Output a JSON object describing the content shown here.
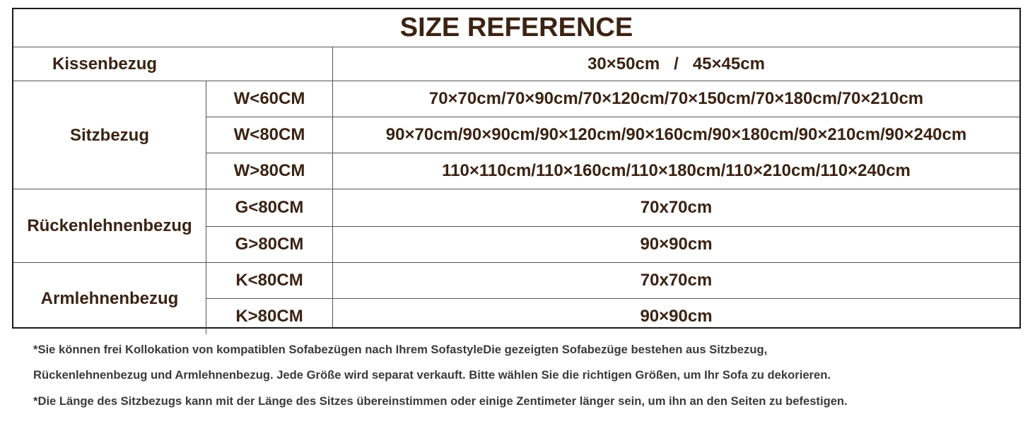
{
  "table": {
    "title": "SIZE REFERENCE",
    "groups": [
      {
        "name": "Kissenbezug",
        "items": [
          {
            "sizes": "30×50cm   /   45×45cm"
          }
        ]
      },
      {
        "name": "Sitzbezug",
        "items": [
          {
            "condition": "W<60CM",
            "sizes": "70×70cm/70×90cm/70×120cm/70×150cm/70×180cm/70×210cm"
          },
          {
            "condition": "W<80CM",
            "sizes": "90×70cm/90×90cm/90×120cm/90×160cm/90×180cm/90×210cm/90×240cm"
          },
          {
            "condition": "W>80CM",
            "sizes": "110×110cm/110×160cm/110×180cm/110×210cm/110×240cm"
          }
        ]
      },
      {
        "name": "Rückenlehnenbezug",
        "items": [
          {
            "condition": "G<80CM",
            "sizes": "70x70cm"
          },
          {
            "condition": "G>80CM",
            "sizes": "90×90cm"
          }
        ]
      },
      {
        "name": "Armlehnenbezug",
        "items": [
          {
            "condition": "K<80CM",
            "sizes": "70x70cm"
          },
          {
            "condition": "K>80CM",
            "sizes": "90×90cm"
          }
        ]
      }
    ]
  },
  "notes": [
    "*Sie können frei Kollokation von kompatiblen Sofabezügen nach Ihrem SofastyleDie gezeigten Sofabezüge bestehen aus Sitzbezug,",
    "Rückenlehnenbezug und Armlehnenbezug. Jede Größe wird separat verkauft. Bitte wählen Sie die richtigen Größen, um Ihr Sofa zu dekorieren.",
    "*Die Länge des Sitzbezugs kann mit der Länge des Sitzes übereinstimmen oder einige Zentimeter länger sein, um ihn an den Seiten zu befestigen."
  ]
}
